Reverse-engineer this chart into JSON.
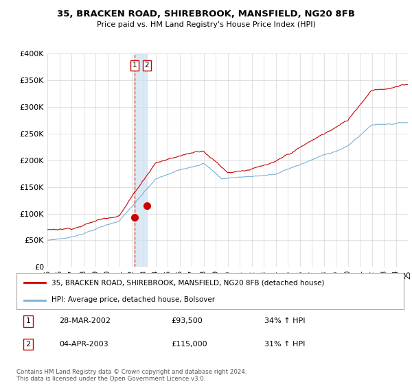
{
  "title": "35, BRACKEN ROAD, SHIREBROOK, MANSFIELD, NG20 8FB",
  "subtitle": "Price paid vs. HM Land Registry's House Price Index (HPI)",
  "legend_line1": "35, BRACKEN ROAD, SHIREBROOK, MANSFIELD, NG20 8FB (detached house)",
  "legend_line2": "HPI: Average price, detached house, Bolsover",
  "transaction1_date": "28-MAR-2002",
  "transaction1_price": "£93,500",
  "transaction1_hpi": "34% ↑ HPI",
  "transaction2_date": "04-APR-2003",
  "transaction2_price": "£115,000",
  "transaction2_hpi": "31% ↑ HPI",
  "copyright": "Contains HM Land Registry data © Crown copyright and database right 2024.\nThis data is licensed under the Open Government Licence v3.0.",
  "hpi_color": "#7bafd4",
  "price_color": "#cc0000",
  "dashed_vline_color": "#cc0000",
  "shade_color": "#cce0f0",
  "ylim_min": 0,
  "ylim_max": 400000,
  "yticks": [
    0,
    50000,
    100000,
    150000,
    200000,
    250000,
    300000,
    350000,
    400000
  ],
  "ytick_labels": [
    "£0",
    "£50K",
    "£100K",
    "£150K",
    "£200K",
    "£250K",
    "£300K",
    "£350K",
    "£400K"
  ],
  "transaction1_x": 2002.24,
  "transaction2_x": 2003.28,
  "transaction1_y": 93500,
  "transaction2_y": 115000,
  "xmin": 1995,
  "xmax": 2025
}
